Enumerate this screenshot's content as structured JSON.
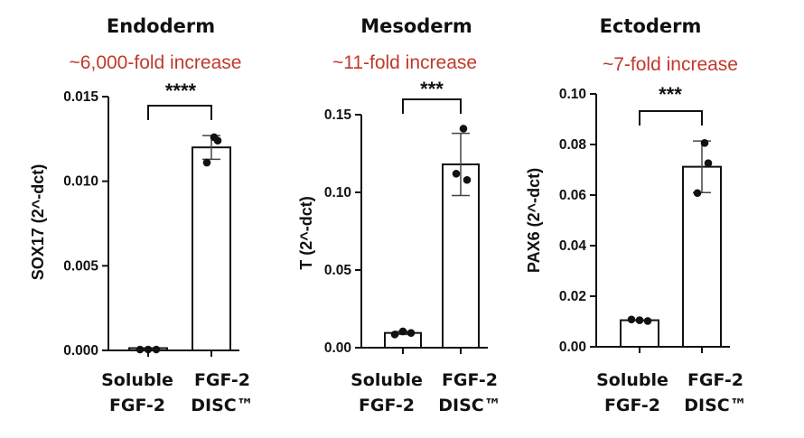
{
  "colors": {
    "annotation": "#c0392b",
    "ink": "#111111",
    "bar_fill": "#ffffff"
  },
  "chart_data": [
    {
      "type": "bar",
      "title": "Endoderm",
      "subtitle": "~6,000-fold increase",
      "ylabel": "SOX17 (2^-dct)",
      "ylim": [
        0,
        0.015
      ],
      "yticks": [
        "0.000",
        "0.005",
        "0.010",
        "0.015"
      ],
      "categories": [
        [
          "Soluble",
          "FGF-2"
        ],
        [
          "FGF-2",
          "DISC™"
        ]
      ],
      "values": [
        2e-06,
        0.012
      ],
      "error": [
        2e-06,
        0.0007
      ],
      "points": [
        [
          0.0,
          0.0,
          5e-06
        ],
        [
          0.0126,
          0.0124,
          0.0111
        ]
      ],
      "significance": "****"
    },
    {
      "type": "bar",
      "title": "Mesoderm",
      "subtitle": "~11-fold increase",
      "ylabel": "T (2^-dct)",
      "ylim": [
        0,
        0.15
      ],
      "yticks": [
        "0.00",
        "0.05",
        "0.10",
        "0.15"
      ],
      "categories": [
        [
          "Soluble",
          "FGF-2"
        ],
        [
          "FGF-2",
          "DISC™"
        ]
      ],
      "values": [
        0.0095,
        0.118
      ],
      "error": [
        0.001,
        0.02
      ],
      "points": [
        [
          0.0085,
          0.0105,
          0.0095
        ],
        [
          0.141,
          0.108,
          0.112
        ]
      ],
      "significance": "***"
    },
    {
      "type": "bar",
      "title": "Ectoderm",
      "subtitle": "~7-fold increase",
      "ylabel": "PAX6 (2^-dct)",
      "ylim": [
        0,
        0.1
      ],
      "yticks": [
        "0.00",
        "0.02",
        "0.04",
        "0.06",
        "0.08",
        "0.10"
      ],
      "categories": [
        [
          "Soluble",
          "FGF-2"
        ],
        [
          "FGF-2",
          "DISC™"
        ]
      ],
      "values": [
        0.0105,
        0.0712
      ],
      "error": [
        0.0005,
        0.0102
      ],
      "points": [
        [
          0.0108,
          0.0105,
          0.0102
        ],
        [
          0.0806,
          0.0726,
          0.0608
        ]
      ],
      "significance": "***"
    }
  ]
}
